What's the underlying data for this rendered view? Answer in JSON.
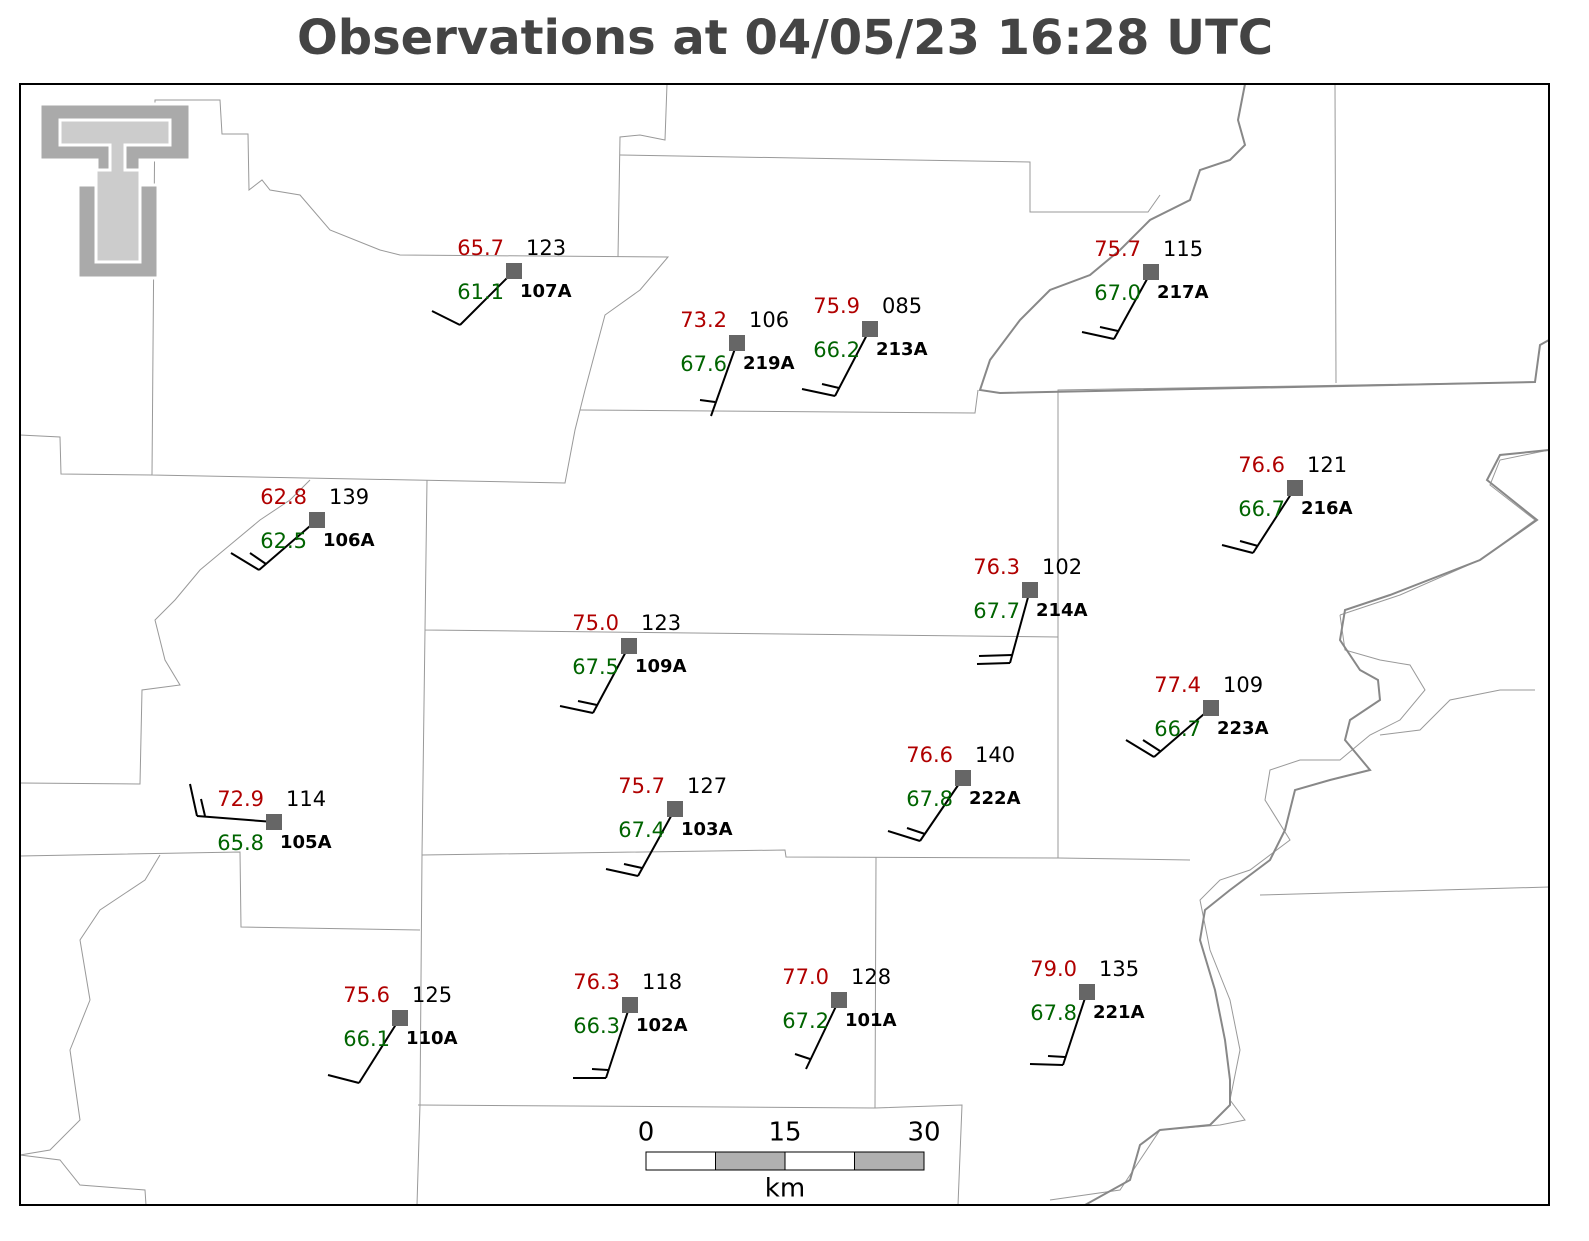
{
  "title": "Observations at 04/05/23 16:28 UTC",
  "stations": [
    {
      "id": "107A",
      "temperature": "65.7",
      "dewpoint": "61.1",
      "pressure": "123"
    },
    {
      "id": "219A",
      "temperature": "73.2",
      "dewpoint": "67.6",
      "pressure": "106"
    },
    {
      "id": "213A",
      "temperature": "75.9",
      "dewpoint": "66.2",
      "pressure": "085"
    },
    {
      "id": "217A",
      "temperature": "75.7",
      "dewpoint": "67.0",
      "pressure": "115"
    },
    {
      "id": "106A",
      "temperature": "62.8",
      "dewpoint": "62.5",
      "pressure": "139"
    },
    {
      "id": "216A",
      "temperature": "76.6",
      "dewpoint": "66.7",
      "pressure": "121"
    },
    {
      "id": "214A",
      "temperature": "76.3",
      "dewpoint": "67.7",
      "pressure": "102"
    },
    {
      "id": "109A",
      "temperature": "75.0",
      "dewpoint": "67.5",
      "pressure": "123"
    },
    {
      "id": "223A",
      "temperature": "77.4",
      "dewpoint": "66.7",
      "pressure": "109"
    },
    {
      "id": "105A",
      "temperature": "72.9",
      "dewpoint": "65.8",
      "pressure": "114"
    },
    {
      "id": "103A",
      "temperature": "75.7",
      "dewpoint": "67.4",
      "pressure": "127"
    },
    {
      "id": "222A",
      "temperature": "76.6",
      "dewpoint": "67.8",
      "pressure": "140"
    },
    {
      "id": "110A",
      "temperature": "75.6",
      "dewpoint": "66.1",
      "pressure": "125"
    },
    {
      "id": "102A",
      "temperature": "76.3",
      "dewpoint": "66.3",
      "pressure": "118"
    },
    {
      "id": "101A",
      "temperature": "77.0",
      "dewpoint": "67.2",
      "pressure": "128"
    },
    {
      "id": "221A",
      "temperature": "79.0",
      "dewpoint": "67.8",
      "pressure": "135"
    }
  ],
  "scale_bar": {
    "ticks": [
      0,
      15,
      30
    ],
    "unit": "km"
  }
}
